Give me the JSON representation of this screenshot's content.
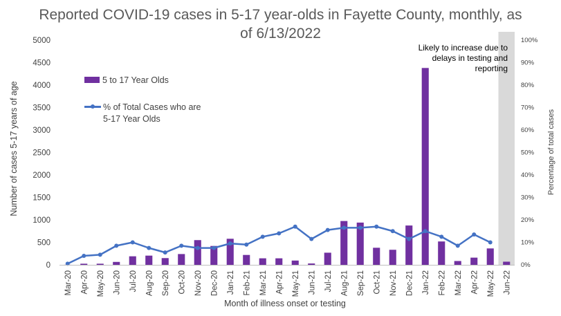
{
  "title_lines": [
    "Reported COVID-19 cases in 5-17 year-olds in Fayette County, monthly, as",
    "of 6/13/2022"
  ],
  "annotation_lines": [
    "Likely to increase due to",
    "delays in testing and",
    "reporting"
  ],
  "colors": {
    "bar": "#7030A0",
    "line": "#4472C4",
    "shade": "#D9D9D9",
    "axis": "#BFBFBF",
    "text": "#595959"
  },
  "chart_data": {
    "type": "bar",
    "title": "Reported COVID-19 cases in 5-17 year-olds in Fayette County, monthly, as of 6/13/2022",
    "xlabel": "Month of illness onset or testing",
    "ylabel": "Number of cases 5-17 years of age",
    "y2label": "Percentage of total cases",
    "ylim": [
      0,
      5000
    ],
    "y2lim": [
      0,
      100
    ],
    "yticks": [
      "0",
      "500",
      "1000",
      "1500",
      "2000",
      "2500",
      "3000",
      "3500",
      "4000",
      "4500",
      "5000"
    ],
    "y2ticks": [
      "0%",
      "10%",
      "20%",
      "30%",
      "40%",
      "50%",
      "60%",
      "70%",
      "80%",
      "90%",
      "100%"
    ],
    "grid": false,
    "legend_position": "upper-left inside",
    "categories": [
      "Mar-20",
      "Apr-20",
      "May-20",
      "Jun-20",
      "Jul-20",
      "Aug-20",
      "Sep-20",
      "Oct-20",
      "Nov-20",
      "Dec-20",
      "Jan-21",
      "Feb-21",
      "Mar-21",
      "Apr-21",
      "May-21",
      "Jun-21",
      "Jul-21",
      "Aug-21",
      "Sep-21",
      "Oct-21",
      "Nov-21",
      "Dec-21",
      "Jan-22",
      "Feb-22",
      "Mar-22",
      "Apr-22",
      "May-22",
      "Jun-22"
    ],
    "series": [
      {
        "name": "5 to 17 Year Olds",
        "type": "bar",
        "axis": "left",
        "values": [
          2,
          25,
          25,
          65,
          190,
          205,
          150,
          240,
          550,
          420,
          580,
          220,
          145,
          145,
          95,
          30,
          270,
          975,
          940,
          380,
          335,
          875,
          4380,
          520,
          85,
          160,
          365,
          70
        ]
      },
      {
        "name": "% of Total Cases who are\n5-17 Year Olds",
        "type": "line",
        "axis": "right",
        "values": [
          0.5,
          4,
          4.5,
          8.5,
          10,
          7.5,
          5.5,
          8.5,
          7.5,
          7.5,
          9.5,
          9,
          12.5,
          14,
          17,
          11.5,
          15.5,
          16.5,
          16.5,
          17,
          15,
          11.5,
          15,
          12.5,
          8.5,
          13.5,
          10,
          null
        ]
      }
    ],
    "shaded_categories": [
      "Jun-22"
    ]
  }
}
